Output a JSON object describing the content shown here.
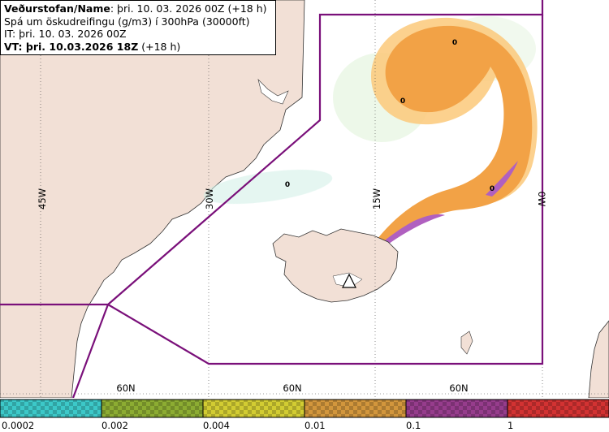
{
  "header": {
    "line1_bold": "Veðurstofan/Name",
    "line1_rest": ": þri. 10. 03. 2026 00Z (+18 h)",
    "line2": "Spá um öskudreifingu (g/m3) í 300hPa (30000ft)",
    "line3": "IT: þri. 10. 03. 2026 00Z",
    "line4_bold": "VT: þri. 10.03.2026 18Z",
    "line4_rest": " (+18 h)"
  },
  "map": {
    "meridians": [
      "45W",
      "30W",
      "15W",
      "0W"
    ],
    "parallels": [
      "60N",
      "60N",
      "60N"
    ],
    "zero_markers": [
      "0",
      "0",
      "0",
      "0"
    ],
    "colors": {
      "land": "#f2e0d6",
      "sea": "#ffffff",
      "boundary": "#7a107a",
      "ash_low": "#fbc97a",
      "ash_mid": "#f2a246",
      "ash_high": "#b060c0"
    }
  },
  "legend": {
    "bins": [
      {
        "color": "#3cc8c8",
        "label": "0.0002"
      },
      {
        "color": "#8cac32",
        "label": "0.002"
      },
      {
        "color": "#d2cc32",
        "label": "0.004"
      },
      {
        "color": "#d2963c",
        "label": "0.01"
      },
      {
        "color": "#963c8c",
        "label": "0.1"
      },
      {
        "color": "#d23232",
        "label": "1"
      }
    ]
  }
}
